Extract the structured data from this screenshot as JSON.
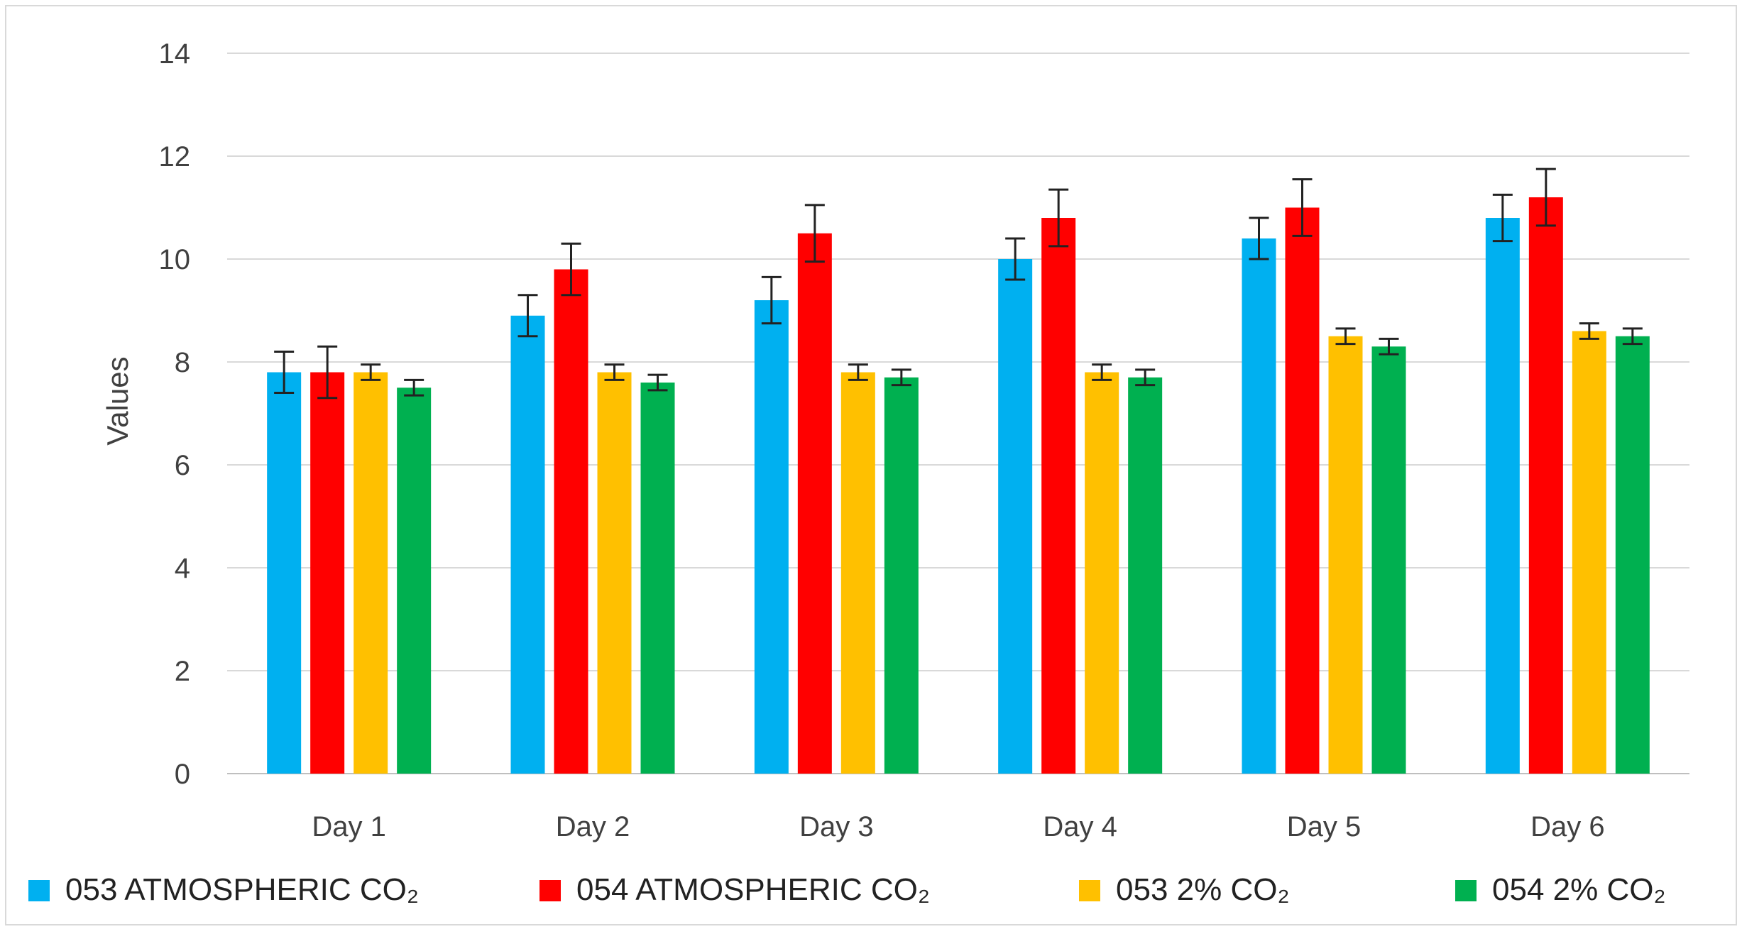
{
  "chart_data": {
    "type": "bar",
    "title": "",
    "xlabel": "",
    "ylabel": "Values",
    "ylim": [
      0,
      14
    ],
    "yticks": [
      0,
      2,
      4,
      6,
      8,
      10,
      12,
      14
    ],
    "grid": true,
    "legend_position": "bottom",
    "categories": [
      "Day 1",
      "Day 2",
      "Day 3",
      "Day 4",
      "Day 5",
      "Day 6"
    ],
    "series": [
      {
        "name": "053 ATMOSPHERIC CO₂",
        "color": "#00b0f0",
        "values": [
          7.8,
          8.9,
          9.2,
          10.0,
          10.4,
          10.8
        ],
        "errors": [
          0.4,
          0.4,
          0.45,
          0.4,
          0.4,
          0.45
        ]
      },
      {
        "name": "054 ATMOSPHERIC CO₂",
        "color": "#ff0000",
        "values": [
          7.8,
          9.8,
          10.5,
          10.8,
          11.0,
          11.2
        ],
        "errors": [
          0.5,
          0.5,
          0.55,
          0.55,
          0.55,
          0.55
        ]
      },
      {
        "name": "053 2% CO₂",
        "color": "#ffc000",
        "values": [
          7.8,
          7.8,
          7.8,
          7.8,
          8.5,
          8.6
        ],
        "errors": [
          0.15,
          0.15,
          0.15,
          0.15,
          0.15,
          0.15
        ]
      },
      {
        "name": "054 2% CO₂",
        "color": "#00b050",
        "values": [
          7.5,
          7.6,
          7.7,
          7.7,
          8.3,
          8.5
        ],
        "errors": [
          0.15,
          0.15,
          0.15,
          0.15,
          0.15,
          0.15
        ]
      }
    ]
  }
}
